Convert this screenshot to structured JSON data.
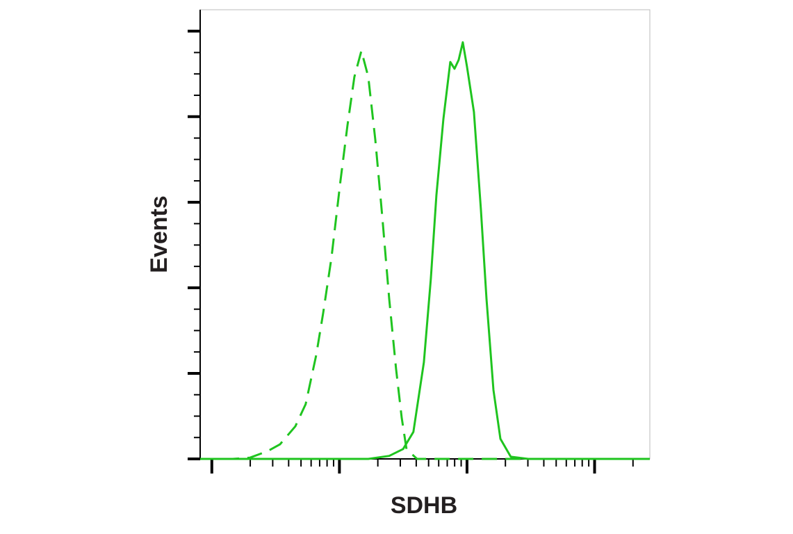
{
  "chart_data": {
    "type": "line",
    "x_label": "SDHB",
    "y_label": "Events",
    "xlog": true,
    "xlim": [
      81,
      271000
    ],
    "ylim": [
      0,
      105
    ],
    "xticks": [
      100,
      1000,
      10000,
      100000
    ],
    "xminorticks": [
      200,
      300,
      400,
      500,
      600,
      700,
      800,
      900,
      2000,
      3000,
      4000,
      5000,
      6000,
      7000,
      8000,
      9000,
      20000,
      30000,
      40000,
      50000,
      60000,
      70000,
      80000,
      90000,
      200000
    ],
    "yticks": [
      0,
      20,
      40,
      60,
      80,
      100
    ],
    "yminorticks": [
      5,
      10,
      15,
      25,
      30,
      35,
      45,
      50,
      55,
      65,
      70,
      75,
      85,
      90,
      95
    ],
    "series": [
      {
        "color": "#1fc41f",
        "dashed": true,
        "x": [
          81,
          146,
          199,
          273,
          342,
          451,
          544,
          657,
          745,
          866,
          1018,
          1155,
          1310,
          1486,
          1684,
          1910,
          2165,
          2455,
          2781,
          3076,
          3358,
          4055,
          271000
        ],
        "values": [
          0,
          0,
          0.3,
          1.8,
          3.4,
          7.6,
          12.8,
          24.2,
          34,
          47,
          64.9,
          77.9,
          89.3,
          95.4,
          89.3,
          74.6,
          56.7,
          37.4,
          21,
          9.6,
          2.3,
          0,
          0
        ]
      },
      {
        "color": "#1fc41f",
        "dashed": false,
        "x": [
          81,
          1684,
          2455,
          3155,
          3802,
          4592,
          5208,
          5754,
          6531,
          7396,
          7980,
          8610,
          9268,
          10000,
          11330,
          12850,
          14220,
          16110,
          18280,
          22030,
          30200,
          271000
        ],
        "values": [
          0,
          0,
          0.7,
          2.3,
          6.3,
          22.6,
          42.1,
          61.6,
          79.5,
          92.8,
          91.2,
          93.3,
          97.4,
          91.7,
          81.1,
          58.4,
          37.4,
          16.1,
          4.7,
          0.5,
          0,
          0
        ]
      }
    ]
  }
}
